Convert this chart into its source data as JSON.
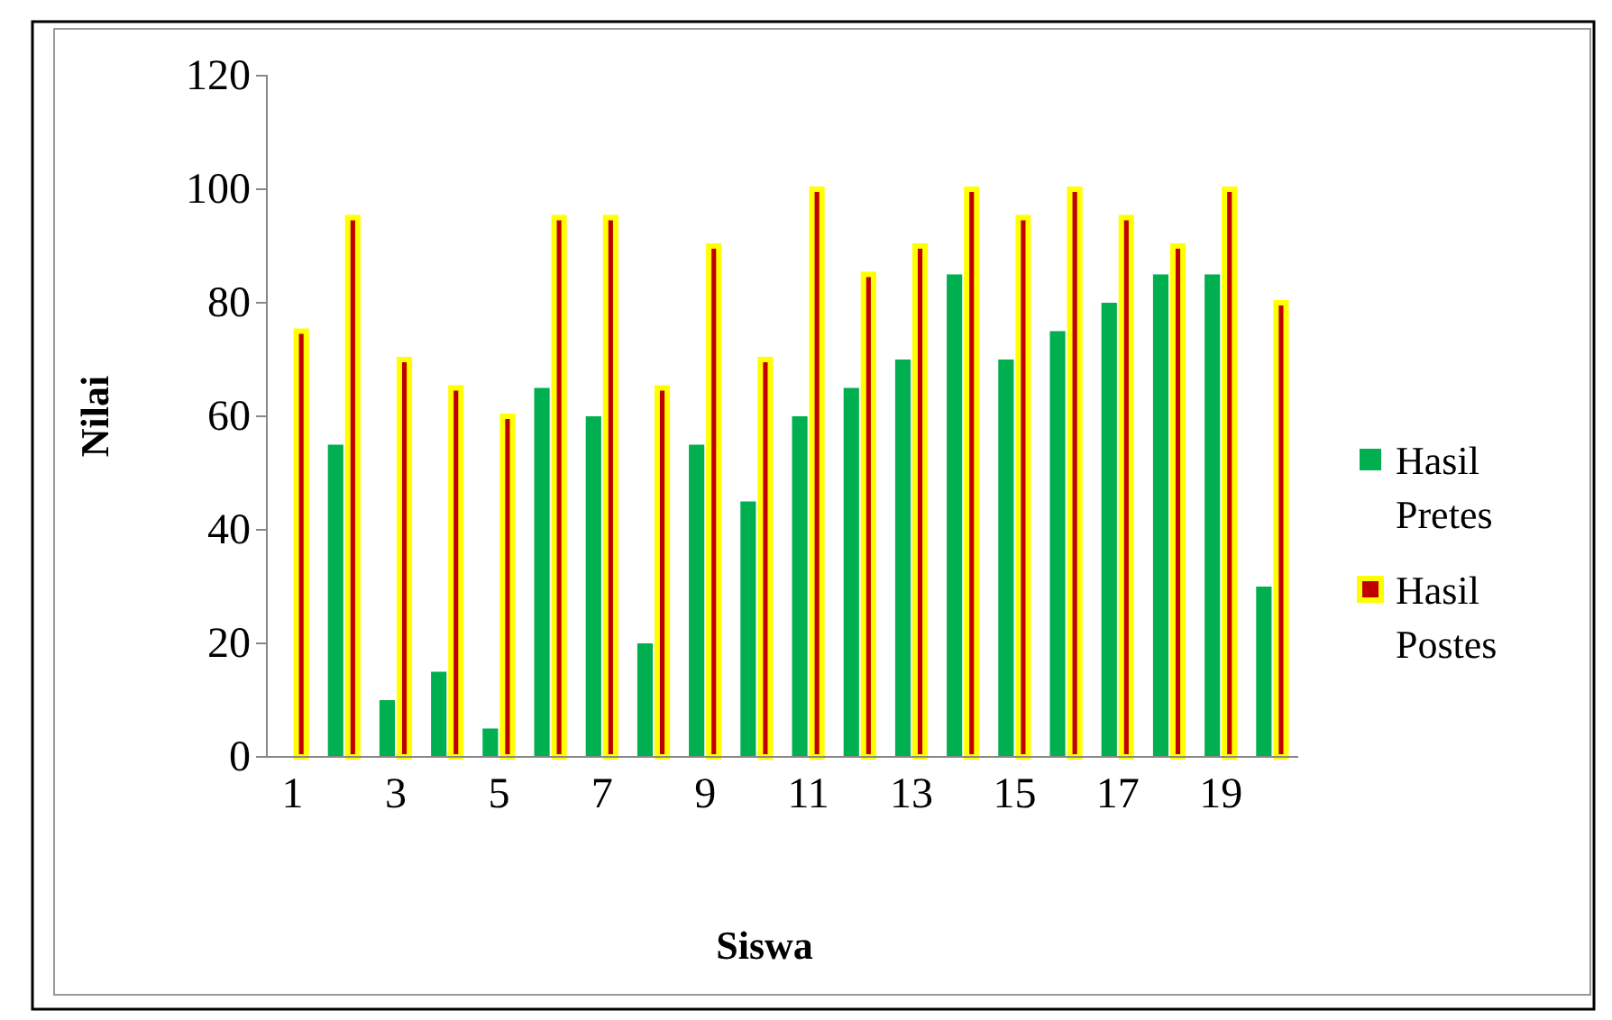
{
  "chart_data": {
    "type": "bar",
    "xlabel": "Siswa",
    "ylabel": "Nilai",
    "categories": [
      "1",
      null,
      "3",
      null,
      "5",
      null,
      "7",
      null,
      "9",
      null,
      "11",
      null,
      "13",
      null,
      "15",
      null,
      "17",
      null,
      "19",
      null
    ],
    "series": [
      {
        "name": "Hasil Pretes",
        "color": "#00b050",
        "values": [
          0,
          55,
          10,
          15,
          5,
          65,
          60,
          20,
          55,
          45,
          60,
          65,
          70,
          85,
          70,
          75,
          80,
          85,
          85,
          30
        ]
      },
      {
        "name": "Hasil Postes",
        "color": "#c00000",
        "values": [
          75,
          95,
          70,
          65,
          60,
          95,
          95,
          65,
          90,
          70,
          100,
          85,
          90,
          100,
          95,
          100,
          95,
          90,
          100,
          80
        ]
      }
    ],
    "ylim": [
      0,
      120
    ],
    "yticks": [
      0,
      20,
      40,
      60,
      80,
      100,
      120
    ],
    "grid": false,
    "legend": "right"
  }
}
